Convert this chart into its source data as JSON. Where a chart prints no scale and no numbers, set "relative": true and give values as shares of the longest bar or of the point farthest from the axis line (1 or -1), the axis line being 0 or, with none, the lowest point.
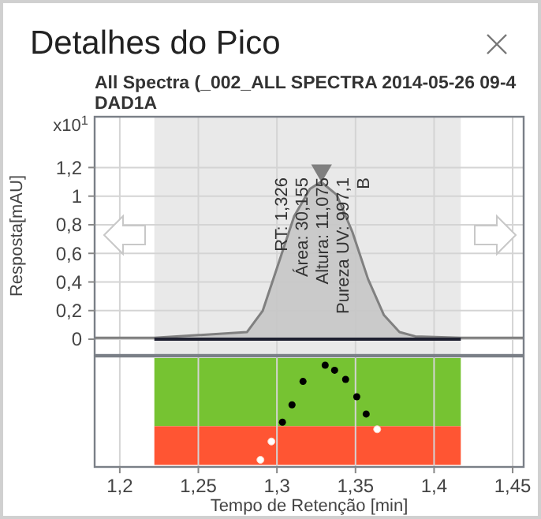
{
  "chart_data": [
    {
      "type": "area",
      "title": "Detalhes do Pico",
      "subtitle": "All Spectra (_002_ALL SPECTRA 2014-05-26 09-4\nDAD1A",
      "ylabel": "Resposta[mAU]",
      "xlim": [
        1.184,
        1.457
      ],
      "xticks": [
        {
          "value": 1.2,
          "label": null
        },
        {
          "value": 1.25,
          "label": null
        },
        {
          "value": 1.3,
          "label": null
        },
        {
          "value": 1.35,
          "label": null
        },
        {
          "value": 1.4,
          "label": null
        },
        {
          "value": 1.45,
          "label": null
        }
      ],
      "ylim": [
        -0.11,
        1.555
      ],
      "yticks": [
        0,
        {
          "value": 0.2,
          "label": "0,2"
        },
        {
          "value": 0.4,
          "label": "0,4"
        },
        {
          "value": 0.6,
          "label": "0,6"
        },
        {
          "value": 0.8,
          "label": "0,8"
        },
        1,
        {
          "value": 1.2,
          "label": "1,2"
        }
      ],
      "tick_labels": "y",
      "grid": true,
      "bands": [
        {
          "axis": "x",
          "from": 1.222,
          "to": 1.417,
          "color": "#e9e9e9"
        }
      ],
      "series": [
        {
          "color": "#808080",
          "x": [
            1.184,
            1.222,
            1.281,
            1.291,
            1.301,
            1.311,
            1.321,
            1.328,
            1.338,
            1.348,
            1.358,
            1.368,
            1.378,
            1.388,
            1.417,
            1.457
          ],
          "values": [
            0.01,
            0.01,
            0.05,
            0.2,
            0.53,
            0.86,
            1.05,
            1.1,
            1.01,
            0.75,
            0.42,
            0.17,
            0.05,
            0.02,
            0.01,
            0.01
          ]
        },
        {
          "type": "line",
          "color": "#1e2030",
          "x": [
            1.222,
            1.32,
            1.417
          ],
          "values": [
            0,
            0,
            0
          ]
        },
        {
          "type": "scatter",
          "color": "#808080",
          "marker": "triangle",
          "x": [
            1.3284
          ],
          "values": [
            1.18
          ]
        }
      ],
      "annotations": [
        "x10$^{1}$",
        {
          "text": "RT: 1,326\nÁrea: 30,155\nAltura: 11,075\nPureza UV: 997,1\nB",
          "x": 1.3284,
          "y": 1.13
        }
      ]
    },
    {
      "type": "scatter",
      "xlabel": "Tempo de Retenção [min]",
      "relative": true,
      "tick_labels": "x",
      "grid": "x",
      "marker": "circle",
      "xlim": [
        1.184,
        1.457
      ],
      "xticks": [
        {
          "value": 1.2,
          "label": "1,2"
        },
        {
          "value": 1.25,
          "label": "1,25"
        },
        {
          "value": 1.3,
          "label": "1,3"
        },
        {
          "value": 1.35,
          "label": "1,35"
        },
        {
          "value": 1.4,
          "label": "1,4"
        },
        {
          "value": 1.45,
          "label": "1,45"
        }
      ],
      "bands": [
        {
          "axis": "y",
          "from": 0.4,
          "to": 1.07,
          "color": "#76c332"
        },
        {
          "axis": "y",
          "from": 0.02,
          "to": 0.4,
          "color": "#ff5533"
        }
      ],
      "x": [
        1.2895,
        1.2965,
        1.3035,
        1.3096,
        1.3166,
        1.3307,
        1.3367,
        1.3437,
        1.3508,
        1.3568,
        1.3638
      ],
      "values": [
        0.07,
        0.25,
        0.44,
        0.61,
        0.84,
        1,
        0.95,
        0.86,
        0.69,
        0.52,
        0.37
      ],
      "colors": [
        "#ffffff",
        "#ffffff",
        "#000000",
        "#000000",
        "#000000",
        "#000000",
        "#000000",
        "#000000",
        "#000000",
        "#000000",
        "#ffffff"
      ]
    }
  ]
}
